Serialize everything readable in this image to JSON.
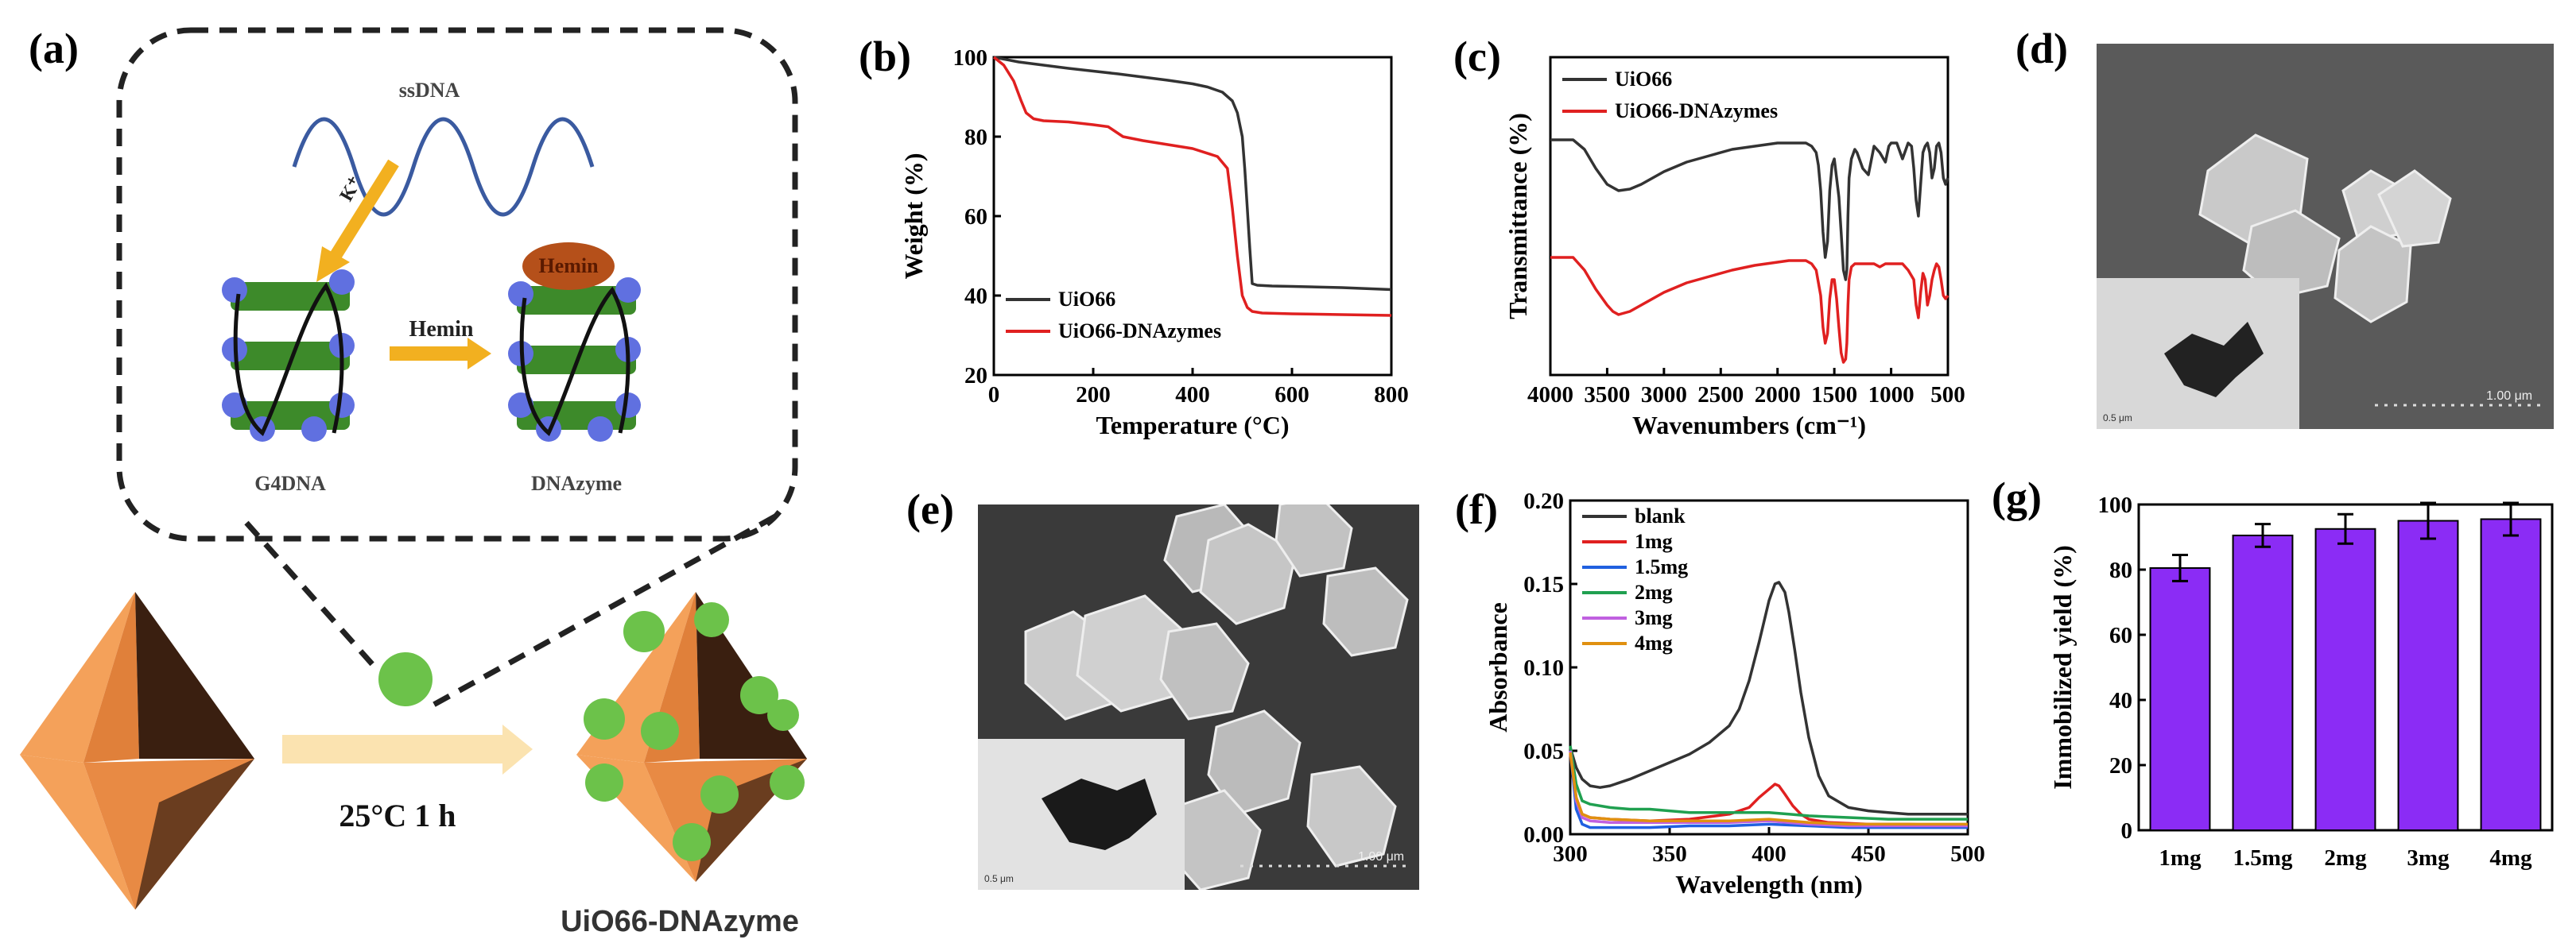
{
  "panels": {
    "a": {
      "label": "(a)",
      "ssdna": "ssDNA",
      "k_label": "K⁺",
      "hemin_arrow": "Hemin",
      "hemin_blob": "Hemin",
      "g4dna": "G4DNA",
      "dnazyme": "DNAzyme",
      "condition": "25°C 1 h",
      "product": "UiO66-DNAzyme"
    },
    "b": {
      "label": "(b)"
    },
    "c": {
      "label": "(c)"
    },
    "d": {
      "label": "(d)",
      "scale": "1.00 μm",
      "inset_scale": "0.5 μm"
    },
    "e": {
      "label": "(e)",
      "scale": "1.00 μm",
      "inset_scale": "0.5 μm"
    },
    "f": {
      "label": "(f)"
    },
    "g": {
      "label": "(g)"
    }
  },
  "colors": {
    "black_series": "#333333",
    "red_series": "#e02020",
    "bar": "#8b2cf5",
    "orange": "#f2a04e"
  },
  "chart_data": [
    {
      "id": "b",
      "type": "line",
      "xlabel": "Temperature (°C)",
      "ylabel": "Weight (%)",
      "xlim": [
        0,
        800
      ],
      "ylim": [
        20,
        100
      ],
      "xticks": [
        0,
        200,
        400,
        600,
        800
      ],
      "yticks": [
        20,
        40,
        60,
        80,
        100
      ],
      "series": [
        {
          "name": "UiO66",
          "color": "#333333",
          "x": [
            0,
            50,
            100,
            150,
            200,
            250,
            300,
            350,
            400,
            430,
            460,
            480,
            490,
            500,
            505,
            510,
            515,
            520,
            530,
            560,
            600,
            700,
            800
          ],
          "y": [
            100,
            98.8,
            98,
            97.2,
            96.5,
            95.8,
            95,
            94.2,
            93.3,
            92.5,
            91.2,
            89,
            86,
            80,
            72,
            62,
            52,
            43,
            42.6,
            42.4,
            42.3,
            42,
            41.5
          ]
        },
        {
          "name": "UiO66-DNAzymes",
          "color": "#e02020",
          "x": [
            0,
            20,
            40,
            55,
            65,
            80,
            100,
            150,
            200,
            230,
            260,
            300,
            350,
            400,
            450,
            470,
            480,
            490,
            500,
            510,
            520,
            540,
            600,
            700,
            800
          ],
          "y": [
            100,
            98,
            94,
            89,
            86,
            84.5,
            84,
            83.7,
            83,
            82.5,
            80,
            79,
            78,
            77,
            75,
            72,
            62,
            50,
            40,
            37,
            36,
            35.6,
            35.4,
            35.2,
            35
          ]
        }
      ]
    },
    {
      "id": "c",
      "type": "line",
      "xlabel": "Wavenumbers (cm⁻¹)",
      "ylabel": "Transmittance (%)",
      "xlim": [
        4000,
        500
      ],
      "ylim": [
        0,
        1
      ],
      "xticks": [
        4000,
        3500,
        3000,
        2500,
        2000,
        1500,
        1000,
        500
      ],
      "xtick_labels": [
        "4000",
        "3500",
        "3000",
        "2500",
        "2000",
        "1500",
        "1000",
        "500"
      ],
      "series": [
        {
          "name": "UiO66",
          "color": "#333333",
          "x": [
            4000,
            3800,
            3700,
            3600,
            3500,
            3400,
            3300,
            3200,
            3000,
            2800,
            2600,
            2400,
            2200,
            2000,
            1900,
            1800,
            1750,
            1700,
            1660,
            1640,
            1620,
            1600,
            1580,
            1560,
            1540,
            1520,
            1500,
            1480,
            1460,
            1440,
            1420,
            1400,
            1390,
            1380,
            1370,
            1350,
            1320,
            1300,
            1250,
            1200,
            1150,
            1100,
            1050,
            1020,
            1000,
            950,
            900,
            850,
            820,
            800,
            780,
            760,
            740,
            720,
            700,
            680,
            660,
            640,
            620,
            600,
            580,
            560,
            540,
            520,
            500
          ],
          "y": [
            0.74,
            0.74,
            0.71,
            0.65,
            0.6,
            0.58,
            0.585,
            0.6,
            0.64,
            0.67,
            0.69,
            0.71,
            0.72,
            0.73,
            0.73,
            0.73,
            0.73,
            0.72,
            0.7,
            0.66,
            0.58,
            0.45,
            0.37,
            0.42,
            0.58,
            0.66,
            0.68,
            0.62,
            0.56,
            0.45,
            0.33,
            0.3,
            0.33,
            0.5,
            0.62,
            0.68,
            0.71,
            0.7,
            0.65,
            0.63,
            0.72,
            0.7,
            0.67,
            0.72,
            0.73,
            0.73,
            0.68,
            0.73,
            0.72,
            0.65,
            0.55,
            0.5,
            0.6,
            0.7,
            0.72,
            0.73,
            0.7,
            0.62,
            0.65,
            0.72,
            0.73,
            0.7,
            0.62,
            0.6,
            0.62
          ]
        },
        {
          "name": "UiO66-DNAzymes",
          "color": "#e02020",
          "x": [
            4000,
            3800,
            3700,
            3600,
            3500,
            3450,
            3400,
            3300,
            3200,
            3000,
            2800,
            2600,
            2400,
            2200,
            2000,
            1900,
            1800,
            1750,
            1700,
            1660,
            1620,
            1600,
            1580,
            1560,
            1540,
            1520,
            1500,
            1480,
            1460,
            1440,
            1420,
            1400,
            1390,
            1380,
            1370,
            1350,
            1320,
            1300,
            1250,
            1200,
            1150,
            1100,
            1050,
            1000,
            950,
            900,
            850,
            800,
            780,
            760,
            740,
            720,
            700,
            680,
            660,
            640,
            620,
            600,
            580,
            560,
            540,
            520,
            500
          ],
          "y": [
            0.37,
            0.37,
            0.33,
            0.27,
            0.22,
            0.2,
            0.19,
            0.2,
            0.22,
            0.26,
            0.29,
            0.31,
            0.33,
            0.345,
            0.355,
            0.36,
            0.36,
            0.36,
            0.35,
            0.33,
            0.25,
            0.15,
            0.1,
            0.13,
            0.24,
            0.3,
            0.3,
            0.24,
            0.15,
            0.07,
            0.04,
            0.05,
            0.1,
            0.22,
            0.3,
            0.34,
            0.35,
            0.35,
            0.35,
            0.35,
            0.35,
            0.34,
            0.35,
            0.35,
            0.35,
            0.35,
            0.33,
            0.3,
            0.22,
            0.18,
            0.26,
            0.32,
            0.3,
            0.22,
            0.25,
            0.3,
            0.33,
            0.35,
            0.34,
            0.3,
            0.25,
            0.24,
            0.25
          ]
        }
      ]
    },
    {
      "id": "f",
      "type": "line",
      "xlabel": "Wavelength (nm)",
      "ylabel": "Absorbance",
      "xlim": [
        300,
        500
      ],
      "ylim": [
        0,
        0.2
      ],
      "xticks": [
        300,
        350,
        400,
        450,
        500
      ],
      "yticks": [
        0,
        0.05,
        0.1,
        0.15,
        0.2
      ],
      "ytick_labels": [
        "0.00",
        "0.05",
        "0.10",
        "0.15",
        "0.20"
      ],
      "series": [
        {
          "name": "blank",
          "color": "#333333",
          "x": [
            300,
            303,
            306,
            310,
            315,
            320,
            330,
            340,
            350,
            360,
            370,
            380,
            385,
            390,
            395,
            400,
            403,
            405,
            408,
            410,
            413,
            416,
            420,
            425,
            430,
            440,
            450,
            460,
            470,
            480,
            490,
            500
          ],
          "y": [
            0.052,
            0.04,
            0.033,
            0.029,
            0.028,
            0.029,
            0.033,
            0.038,
            0.043,
            0.048,
            0.055,
            0.065,
            0.075,
            0.092,
            0.115,
            0.14,
            0.15,
            0.151,
            0.145,
            0.133,
            0.11,
            0.085,
            0.058,
            0.035,
            0.023,
            0.016,
            0.014,
            0.013,
            0.012,
            0.012,
            0.012,
            0.012
          ]
        },
        {
          "name": "1mg",
          "color": "#e02020",
          "x": [
            300,
            303,
            306,
            310,
            320,
            340,
            360,
            380,
            390,
            395,
            400,
            403,
            405,
            408,
            412,
            416,
            420,
            430,
            450,
            470,
            500
          ],
          "y": [
            0.048,
            0.022,
            0.012,
            0.01,
            0.009,
            0.008,
            0.009,
            0.012,
            0.016,
            0.022,
            0.027,
            0.03,
            0.029,
            0.024,
            0.017,
            0.012,
            0.009,
            0.007,
            0.006,
            0.006,
            0.005
          ]
        },
        {
          "name": "1.5mg",
          "color": "#2060e0",
          "x": [
            300,
            303,
            306,
            310,
            320,
            340,
            360,
            380,
            400,
            420,
            440,
            460,
            480,
            500
          ],
          "y": [
            0.05,
            0.015,
            0.006,
            0.004,
            0.004,
            0.004,
            0.005,
            0.005,
            0.006,
            0.005,
            0.004,
            0.004,
            0.004,
            0.004
          ]
        },
        {
          "name": "2mg",
          "color": "#20a050",
          "x": [
            300,
            303,
            306,
            310,
            320,
            330,
            340,
            350,
            360,
            370,
            380,
            390,
            400,
            410,
            420,
            440,
            460,
            480,
            500
          ],
          "y": [
            0.053,
            0.03,
            0.02,
            0.018,
            0.016,
            0.015,
            0.015,
            0.014,
            0.013,
            0.013,
            0.013,
            0.013,
            0.013,
            0.012,
            0.011,
            0.01,
            0.009,
            0.009,
            0.009
          ]
        },
        {
          "name": "3mg",
          "color": "#c060e0",
          "x": [
            300,
            303,
            306,
            310,
            320,
            340,
            360,
            380,
            400,
            420,
            440,
            460,
            480,
            500
          ],
          "y": [
            0.05,
            0.02,
            0.01,
            0.008,
            0.007,
            0.007,
            0.007,
            0.007,
            0.008,
            0.006,
            0.005,
            0.005,
            0.005,
            0.005
          ]
        },
        {
          "name": "4mg",
          "color": "#e09010",
          "x": [
            300,
            303,
            306,
            310,
            320,
            340,
            360,
            380,
            400,
            420,
            440,
            460,
            480,
            500
          ],
          "y": [
            0.049,
            0.022,
            0.012,
            0.01,
            0.009,
            0.008,
            0.008,
            0.008,
            0.009,
            0.007,
            0.006,
            0.006,
            0.006,
            0.006
          ]
        }
      ]
    },
    {
      "id": "g",
      "type": "bar",
      "xlabel": "",
      "ylabel": "Immobilized yield (%)",
      "ylim": [
        0,
        100
      ],
      "yticks": [
        0,
        20,
        40,
        60,
        80,
        100
      ],
      "categories": [
        "1mg",
        "1.5mg",
        "2mg",
        "3mg",
        "4mg"
      ],
      "values": [
        80.5,
        90.5,
        92.5,
        95,
        95.5
      ],
      "errors": [
        4,
        3.5,
        4.5,
        5.5,
        5
      ]
    }
  ]
}
